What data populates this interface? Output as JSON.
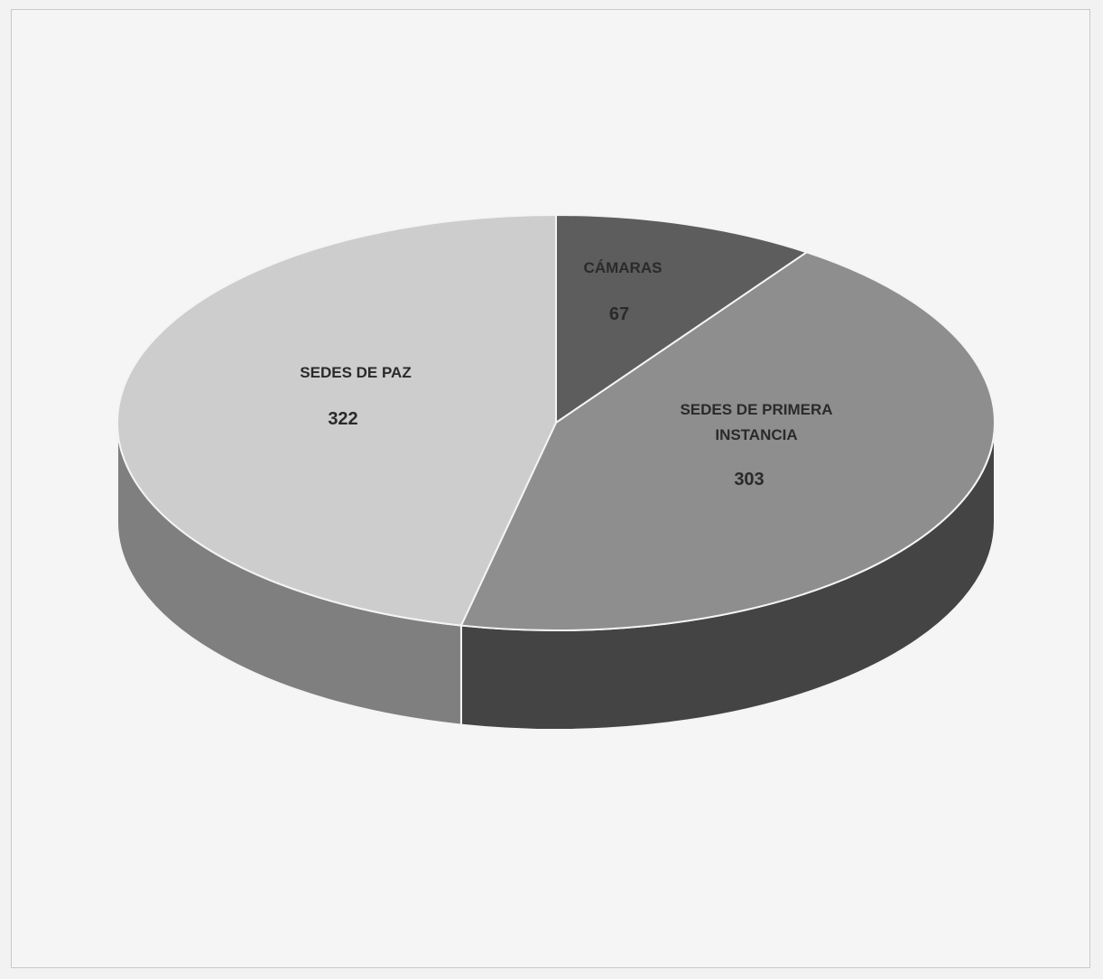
{
  "chart_data": {
    "type": "pie",
    "title": "",
    "legend": "none",
    "slices": [
      {
        "label_lines": [
          "CÁMARAS"
        ],
        "value": 67,
        "color": "#5d5d5d"
      },
      {
        "label_lines": [
          "SEDES DE PRIMERA",
          "INSTANCIA"
        ],
        "value": 303,
        "color": "#8e8e8e"
      },
      {
        "label_lines": [
          "SEDES DE PAZ"
        ],
        "value": 322,
        "color": "#cdcdcd"
      }
    ]
  }
}
